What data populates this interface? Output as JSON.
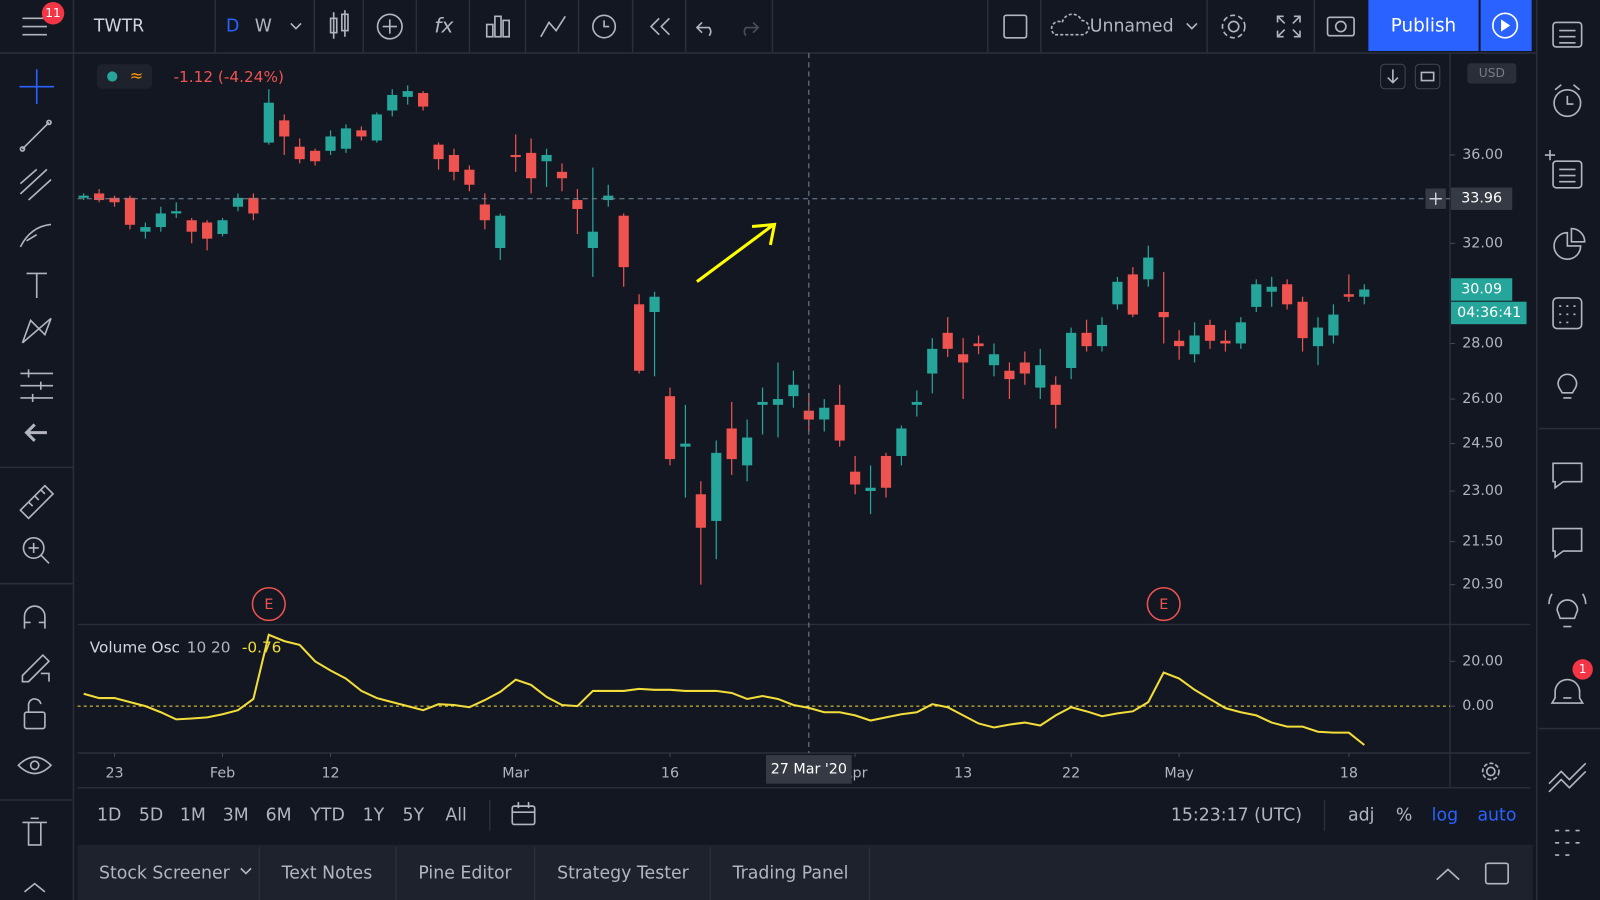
{
  "toolbar": {
    "symbol": "TWTR",
    "intervals": [
      "D",
      "W"
    ],
    "layout": "Unnamed",
    "publish": "Publish",
    "menu_badge": "11"
  },
  "chart_data": [
    {
      "type": "candlestick",
      "change": "-1.12 (-4.24%)",
      "currency": "USD",
      "log": true,
      "up_color": "#26a69a",
      "down_color": "#ef5350",
      "open": [
        34.0,
        34.2,
        34.0,
        34.0,
        32.5,
        32.7,
        33.3,
        33.0,
        32.9,
        32.4,
        33.6,
        34.0,
        36.6,
        37.7,
        36.4,
        36.2,
        36.2,
        36.3,
        37.2,
        36.7,
        38.2,
        38.9,
        39.1,
        36.5,
        36.0,
        35.3,
        33.7,
        31.8,
        36.0,
        36.1,
        35.7,
        35.2,
        33.9,
        31.8,
        33.9,
        33.2,
        29.5,
        29.2,
        26.1,
        24.4,
        22.9,
        22.1,
        25.0,
        23.8,
        25.8,
        25.8,
        26.1,
        25.6,
        25.3,
        25.8,
        23.6,
        23.0,
        24.1,
        24.1,
        25.8,
        26.9,
        28.4,
        27.6,
        28.0,
        27.2,
        27.0,
        27.3,
        26.4,
        26.5,
        27.1,
        28.4,
        27.9,
        29.5,
        30.7,
        30.5,
        29.2,
        28.1,
        27.6,
        28.7,
        28.1,
        28.0,
        29.4,
        30.0,
        30.3,
        29.6,
        27.9,
        28.3,
        29.9,
        29.8
      ],
      "high": [
        34.2,
        34.4,
        34.1,
        34.1,
        32.9,
        33.6,
        33.8,
        33.1,
        33.0,
        33.1,
        34.2,
        34.2,
        39.3,
        38.0,
        36.8,
        36.3,
        37.2,
        37.5,
        37.4,
        38.1,
        39.3,
        39.5,
        39.2,
        36.6,
        36.3,
        35.5,
        34.2,
        33.3,
        37.0,
        36.8,
        36.3,
        35.6,
        34.4,
        35.4,
        34.6,
        33.3,
        29.9,
        30.0,
        26.4,
        25.8,
        23.3,
        24.6,
        25.9,
        25.3,
        26.4,
        27.3,
        27.0,
        26.2,
        26.0,
        26.5,
        24.1,
        23.8,
        24.2,
        25.1,
        26.3,
        28.2,
        29.0,
        28.2,
        28.3,
        28.0,
        27.3,
        27.7,
        27.8,
        26.8,
        28.6,
        28.9,
        29.0,
        30.6,
        31.0,
        31.9,
        30.8,
        28.5,
        28.8,
        28.9,
        28.5,
        29.0,
        30.5,
        30.6,
        30.5,
        29.8,
        29.0,
        29.5,
        30.7,
        30.3
      ],
      "low": [
        33.9,
        33.8,
        33.6,
        32.6,
        32.2,
        32.5,
        33.1,
        32.0,
        31.7,
        32.3,
        33.4,
        33.0,
        36.5,
        36.0,
        35.6,
        35.5,
        36.0,
        36.1,
        36.7,
        36.6,
        37.9,
        38.5,
        38.2,
        35.3,
        34.8,
        34.3,
        32.6,
        31.3,
        35.2,
        34.2,
        34.5,
        34.3,
        32.4,
        30.6,
        33.6,
        30.2,
        26.9,
        26.8,
        23.8,
        22.8,
        20.3,
        21.0,
        23.5,
        23.3,
        24.8,
        24.7,
        25.7,
        24.9,
        24.9,
        24.4,
        22.9,
        22.3,
        22.8,
        23.8,
        25.4,
        26.2,
        27.5,
        26.0,
        27.6,
        26.8,
        26.0,
        26.5,
        26.0,
        25.0,
        26.7,
        27.7,
        27.7,
        29.3,
        29.0,
        30.2,
        28.0,
        27.4,
        27.3,
        27.8,
        27.7,
        27.8,
        29.2,
        29.4,
        29.3,
        27.7,
        27.2,
        28.0,
        29.6,
        29.5
      ],
      "close": [
        34.1,
        33.9,
        33.8,
        32.8,
        32.7,
        33.3,
        33.4,
        32.5,
        32.2,
        33.0,
        34.0,
        33.3,
        38.6,
        36.9,
        35.8,
        35.7,
        36.9,
        37.3,
        36.9,
        38.0,
        39.0,
        39.2,
        38.4,
        35.8,
        35.2,
        34.6,
        33.0,
        33.2,
        35.9,
        34.9,
        36.0,
        34.9,
        33.5,
        32.5,
        34.1,
        31.0,
        27.0,
        29.8,
        24.0,
        24.5,
        21.9,
        24.2,
        24.0,
        24.7,
        25.9,
        26.0,
        26.5,
        25.3,
        25.7,
        24.6,
        23.2,
        23.1,
        23.1,
        25.0,
        25.9,
        27.8,
        27.8,
        27.3,
        27.9,
        27.6,
        26.7,
        26.9,
        27.2,
        25.8,
        28.4,
        27.9,
        28.7,
        30.4,
        29.1,
        31.4,
        29.0,
        27.9,
        28.3,
        28.1,
        28.0,
        28.8,
        30.3,
        30.2,
        29.5,
        28.2,
        28.6,
        29.1,
        29.8,
        30.09
      ],
      "ylim": [
        19.25,
        41.24
      ],
      "yticks": [
        {
          "value": 36,
          "label": "36.00"
        },
        {
          "value": 32,
          "label": "32.00"
        },
        {
          "value": 28,
          "label": "28.00"
        },
        {
          "value": 26,
          "label": "26.00"
        },
        {
          "value": 24.5,
          "label": "24.50"
        },
        {
          "value": 23,
          "label": "23.00"
        },
        {
          "value": 21.5,
          "label": "21.50"
        },
        {
          "value": 20.3,
          "label": "20.30"
        }
      ],
      "xticks": [
        {
          "value": 2,
          "label": "23"
        },
        {
          "value": 9,
          "label": "Feb"
        },
        {
          "value": 16,
          "label": "12"
        },
        {
          "value": 28,
          "label": "Mar"
        },
        {
          "value": 38,
          "label": "16"
        },
        {
          "value": 50,
          "label": "Apr"
        },
        {
          "value": 57,
          "label": "13"
        },
        {
          "value": 64,
          "label": "22"
        },
        {
          "value": 71,
          "label": "May"
        },
        {
          "value": 82,
          "label": "18"
        }
      ],
      "crosshair": {
        "x": 47,
        "label": "27 Mar '20",
        "price": 33.96
      },
      "countdown": "04:36:41",
      "events": [
        {
          "x": 12,
          "label": "E"
        },
        {
          "x": 70,
          "label": "E"
        }
      ]
    },
    {
      "type": "line",
      "name": "Volume Osc",
      "params": "10 20",
      "color": "#f2dd3a",
      "values": [
        5.5,
        3.6,
        3.6,
        1.8,
        0,
        -2.7,
        -5.9,
        -5.5,
        -5,
        -3.6,
        -1.8,
        3.2,
        31.8,
        29,
        27.3,
        20,
        15.9,
        12.3,
        6.8,
        3.6,
        1.8,
        0,
        -1.8,
        0.9,
        0.5,
        -0.5,
        2.7,
        6.4,
        11.8,
        9.5,
        4.1,
        0.5,
        0,
        6.8,
        6.8,
        6.8,
        7.7,
        7.3,
        7.3,
        6.8,
        6.8,
        6.8,
        5.9,
        3.2,
        4.5,
        3.2,
        0.5,
        -0.76,
        -2.7,
        -2.7,
        -4.1,
        -6.4,
        -5,
        -3.6,
        -2.7,
        0.9,
        -0.5,
        -4.1,
        -7.7,
        -9.5,
        -8.2,
        -7.3,
        -8.6,
        -4.1,
        -0.5,
        -2.3,
        -4.5,
        -3.2,
        -2.3,
        1.8,
        15,
        12.3,
        7.3,
        3.2,
        -0.9,
        -2.7,
        -4.1,
        -7.3,
        -9.1,
        -9.1,
        -11.4,
        -11.8,
        -11.8,
        -17.3
      ],
      "ylim": [
        -20.9,
        36.4
      ],
      "yticks": [
        {
          "value": 20,
          "label": "20.00"
        },
        {
          "value": 0,
          "label": "0.00"
        }
      ]
    }
  ],
  "range_buttons": [
    "1D",
    "5D",
    "1M",
    "3M",
    "6M",
    "YTD",
    "1Y",
    "5Y",
    "All"
  ],
  "clock": "15:23:17 (UTC)",
  "scale_options": [
    "adj",
    "%",
    "log",
    "auto"
  ],
  "tabs": [
    "Stock Screener",
    "Text Notes",
    "Pine Editor",
    "Strategy Tester",
    "Trading Panel"
  ],
  "notification_badge": "1"
}
